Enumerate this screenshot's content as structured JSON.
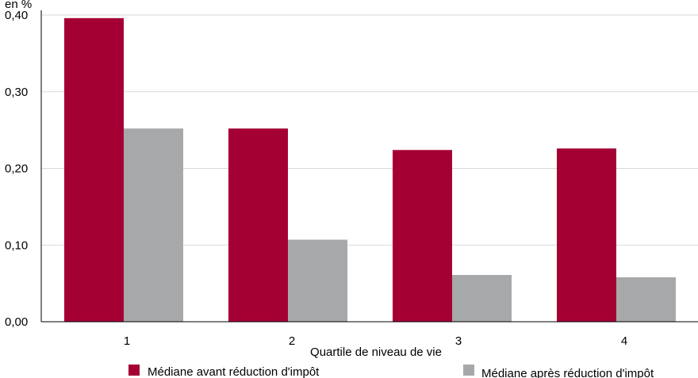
{
  "chart_data": {
    "type": "bar",
    "y_unit_label": "en %",
    "xlabel": "Quartile de niveau de vie",
    "ylabel": "",
    "categories": [
      "1",
      "2",
      "3",
      "4"
    ],
    "ylim": [
      0,
      0.4
    ],
    "yticks": [
      0.0,
      0.1,
      0.2,
      0.3,
      0.4
    ],
    "ytick_labels": [
      "0,00",
      "0,10",
      "0,20",
      "0,30",
      "0,40"
    ],
    "grid": true,
    "legend_position": "bottom",
    "series": [
      {
        "name": "Médiane avant réduction d'impôt",
        "color": "#a50034",
        "values": [
          0.396,
          0.252,
          0.224,
          0.226
        ]
      },
      {
        "name": "Médiane après réduction d'impôt",
        "color": "#a7a8aa",
        "values": [
          0.252,
          0.107,
          0.061,
          0.058
        ]
      }
    ]
  }
}
